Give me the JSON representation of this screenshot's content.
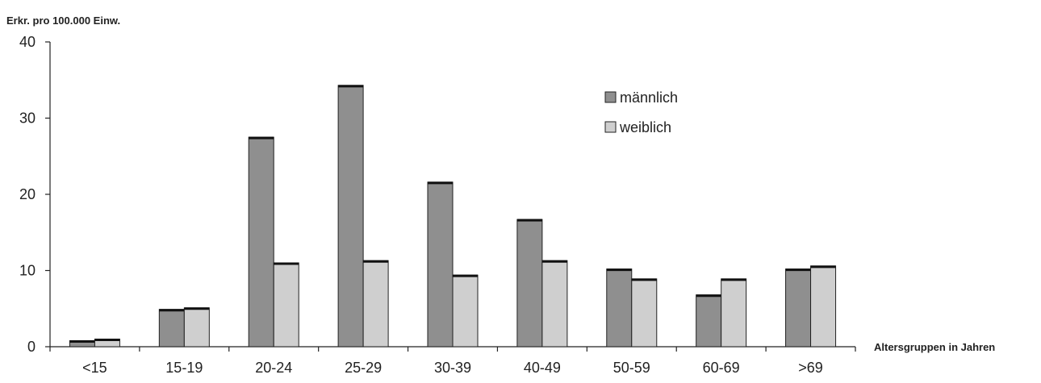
{
  "chart_data": {
    "type": "bar",
    "title": "",
    "ylabel": "Erkr. pro 100.000 Einw.",
    "xlabel": "Altersgruppen in Jahren",
    "categories": [
      "<15",
      "15-19",
      "20-24",
      "25-29",
      "30-39",
      "40-49",
      "50-59",
      "60-69",
      ">69"
    ],
    "series": [
      {
        "name": "männlich",
        "values": [
          0.8,
          4.9,
          27.5,
          34.3,
          21.6,
          16.7,
          10.2,
          6.8,
          10.2
        ],
        "color": "#8f8f8f"
      },
      {
        "name": "weiblich",
        "values": [
          1.0,
          5.1,
          11.0,
          11.3,
          9.4,
          11.3,
          8.9,
          8.9,
          10.6
        ],
        "color": "#cfcfcf"
      }
    ],
    "ylim": [
      0,
      40
    ],
    "yticks": [
      0,
      10,
      20,
      30,
      40
    ],
    "grid": false,
    "legend_position": "top-right"
  }
}
